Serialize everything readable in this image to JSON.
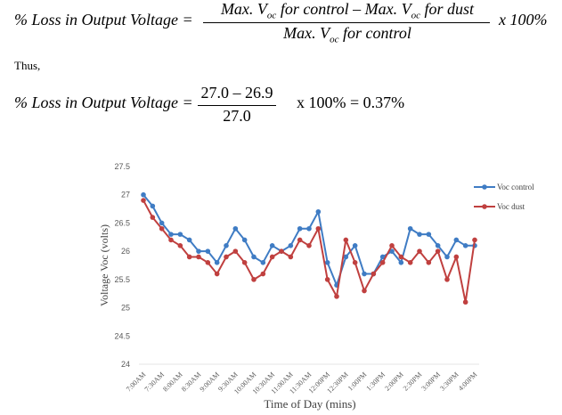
{
  "formula": {
    "lhs": "% Loss in Output Voltage =",
    "numerator_a": "Max. V",
    "numerator_a_sub": "oc",
    "numerator_a_rest": "for control –",
    "numerator_b": "Max. V",
    "numerator_b_sub": "oc",
    "numerator_b_rest": "for dust",
    "denominator": "Max. V",
    "denominator_sub": "oc",
    "denominator_rest": "for control",
    "multiplier": "x 100%"
  },
  "thus_label": "Thus,",
  "calculation": {
    "lhs": "% Loss in Output Voltage =",
    "numerator": "27.0 – 26.9",
    "denominator": "27.0",
    "rhs": "x 100% = 0.37%"
  },
  "chart_data": {
    "type": "line",
    "title": "",
    "xlabel": "Time of Day (mins)",
    "ylabel": "Voltage Voc (volts)",
    "ylim": [
      24,
      27.5
    ],
    "yticks": [
      "24",
      "24.5",
      "25",
      "25.5",
      "26",
      "26.5",
      "27",
      "27.5"
    ],
    "ytick_values": [
      24,
      24.5,
      25,
      25.5,
      26,
      26.5,
      27,
      27.5
    ],
    "xtick_labels": [
      "7:00AM",
      "7:30AM",
      "8:00AM",
      "8:30AM",
      "9:00AM",
      "9:30AM",
      "10:00AM",
      "10:30AM",
      "11:00AM",
      "11:30AM",
      "12:00PM",
      "12:30PM",
      "1:00PM",
      "1:30PM",
      "2:00PM",
      "2:30PM",
      "3:00PM",
      "3:30PM",
      "4:00PM"
    ],
    "x_interval_minutes": 15,
    "grid": false,
    "legend_position": "right",
    "series": [
      {
        "name": "Voc control",
        "color": "#3F7CC4",
        "values": [
          27.0,
          26.8,
          26.5,
          26.3,
          26.3,
          26.2,
          26.0,
          26.0,
          25.8,
          26.1,
          26.4,
          26.2,
          25.9,
          25.8,
          26.1,
          26.0,
          26.1,
          26.4,
          26.4,
          26.7,
          25.8,
          25.4,
          25.9,
          26.1,
          25.6,
          25.6,
          25.9,
          26.0,
          25.8,
          26.4,
          26.3,
          26.3,
          26.1,
          25.9,
          26.2,
          26.1,
          26.1
        ]
      },
      {
        "name": "Voc dust",
        "color": "#C0403F",
        "values": [
          26.9,
          26.6,
          26.4,
          26.2,
          26.1,
          25.9,
          25.9,
          25.8,
          25.6,
          25.9,
          26.0,
          25.8,
          25.5,
          25.6,
          25.9,
          26.0,
          25.9,
          26.2,
          26.1,
          26.4,
          25.5,
          25.2,
          26.2,
          25.8,
          25.3,
          25.6,
          25.8,
          26.1,
          25.9,
          25.8,
          26.0,
          25.8,
          26.0,
          25.5,
          25.9,
          25.1,
          26.2
        ]
      }
    ]
  }
}
